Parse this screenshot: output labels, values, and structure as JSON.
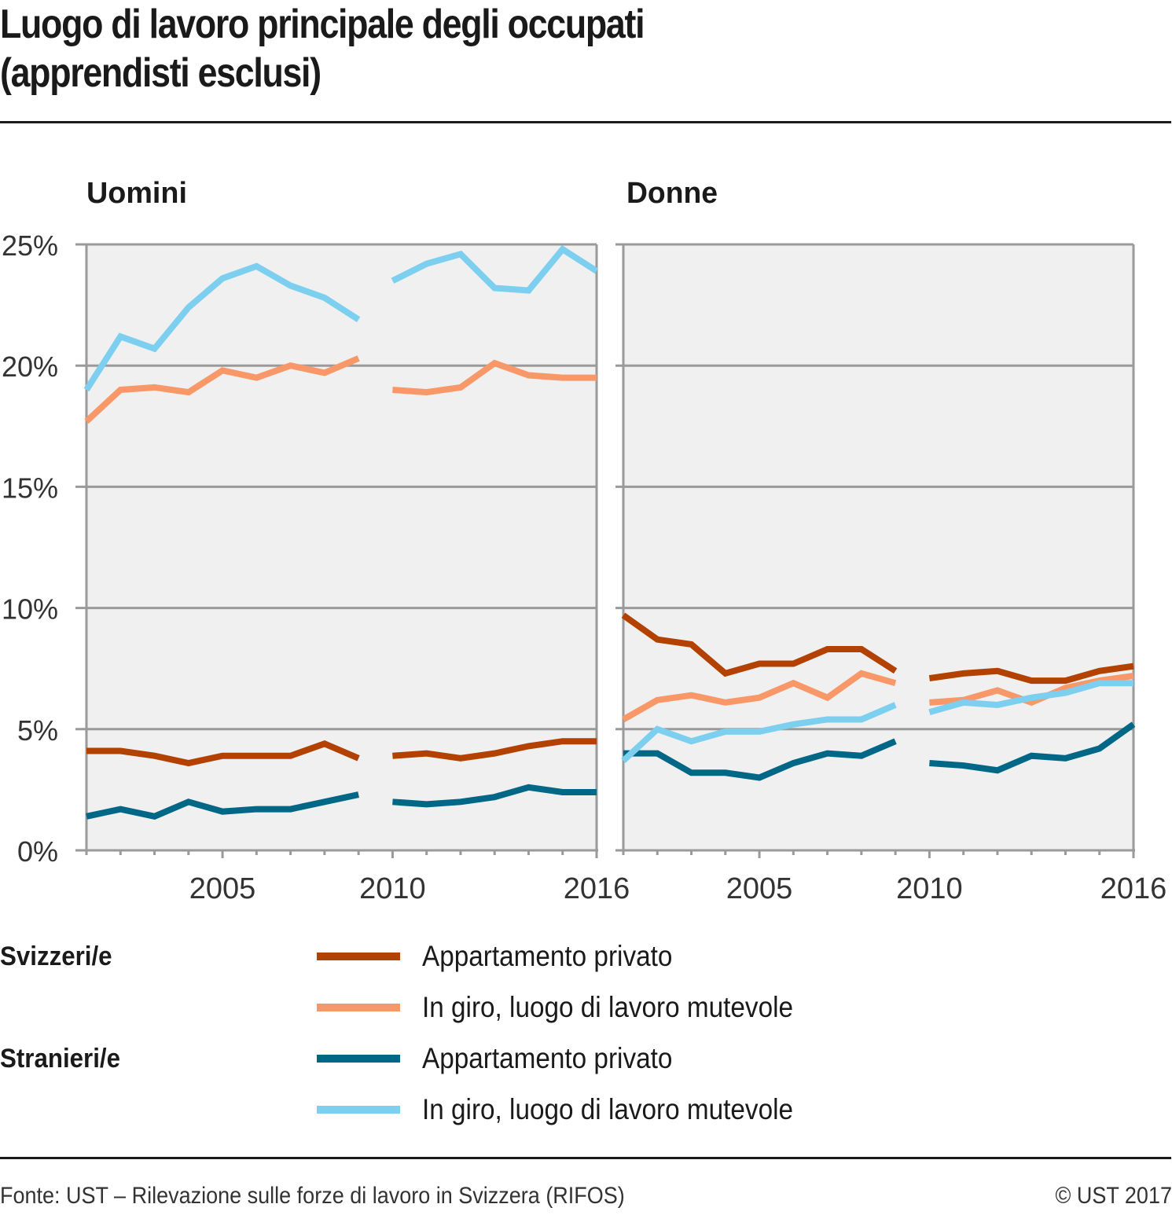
{
  "title_line1": "Luogo di lavoro principale degli occupati",
  "title_line2": "(apprendisti esclusi)",
  "footer": {
    "source": "Fonte: UST – Rilevazione sulle forze di lavoro in Svizzera (RIFOS)",
    "copyright": "© UST 2017"
  },
  "legend": {
    "groups": [
      {
        "label": "Svizzeri/e",
        "items": [
          {
            "label": "Appartamento privato",
            "color": "#b34200"
          },
          {
            "label": "In giro, luogo di lavoro mutevole",
            "color": "#f89868"
          }
        ]
      },
      {
        "label": "Stranieri/e",
        "items": [
          {
            "label": "Appartamento privato",
            "color": "#006787"
          },
          {
            "label": "In giro, luogo di lavoro mutevole",
            "color": "#7dcff0"
          }
        ]
      }
    ]
  },
  "chart_data": [
    {
      "type": "line",
      "title": "Uomini",
      "xlabel": "",
      "ylabel": "",
      "ylim": [
        0,
        25
      ],
      "yticks": [
        0,
        5,
        10,
        15,
        20,
        25
      ],
      "ytick_labels": [
        "0%",
        "5%",
        "10%",
        "15%",
        "20%",
        "25%"
      ],
      "xlim": [
        2001,
        2016
      ],
      "xtick_labels": [
        "2005",
        "2010",
        "2016"
      ],
      "grid": true,
      "x": [
        2001,
        2002,
        2003,
        2004,
        2005,
        2006,
        2007,
        2008,
        2009,
        2010,
        2011,
        2012,
        2013,
        2014,
        2015,
        2016
      ],
      "break_after": 2009,
      "series": [
        {
          "name": "Svizzeri/e – Appartamento privato",
          "color": "#b34200",
          "values": [
            4.1,
            4.1,
            3.9,
            3.6,
            3.9,
            3.9,
            3.9,
            4.4,
            3.8,
            3.9,
            4.0,
            3.8,
            4.0,
            4.3,
            4.5,
            4.5
          ]
        },
        {
          "name": "Svizzeri/e – In giro, luogo di lavoro mutevole",
          "color": "#f89868",
          "values": [
            17.7,
            19.0,
            19.1,
            18.9,
            19.8,
            19.5,
            20.0,
            19.7,
            20.3,
            19.0,
            18.9,
            19.1,
            20.1,
            19.6,
            19.5,
            19.5
          ]
        },
        {
          "name": "Stranieri/e – Appartamento privato",
          "color": "#006787",
          "values": [
            1.4,
            1.7,
            1.4,
            2.0,
            1.6,
            1.7,
            1.7,
            2.0,
            2.3,
            2.0,
            1.9,
            2.0,
            2.2,
            2.6,
            2.4,
            2.4
          ]
        },
        {
          "name": "Stranieri/e – In giro, luogo di lavoro mutevole",
          "color": "#7dcff0",
          "values": [
            19.0,
            21.2,
            20.7,
            22.4,
            23.6,
            24.1,
            23.3,
            22.8,
            21.9,
            23.5,
            24.2,
            24.6,
            23.2,
            23.1,
            24.8,
            23.9
          ]
        }
      ]
    },
    {
      "type": "line",
      "title": "Donne",
      "xlabel": "",
      "ylabel": "",
      "ylim": [
        0,
        25
      ],
      "yticks": [
        0,
        5,
        10,
        15,
        20,
        25
      ],
      "xlim": [
        2001,
        2016
      ],
      "xtick_labels": [
        "2005",
        "2010",
        "2016"
      ],
      "grid": true,
      "x": [
        2001,
        2002,
        2003,
        2004,
        2005,
        2006,
        2007,
        2008,
        2009,
        2010,
        2011,
        2012,
        2013,
        2014,
        2015,
        2016
      ],
      "break_after": 2009,
      "series": [
        {
          "name": "Svizzeri/e – Appartamento privato",
          "color": "#b34200",
          "values": [
            9.7,
            8.7,
            8.5,
            7.3,
            7.7,
            7.7,
            8.3,
            8.3,
            7.4,
            7.1,
            7.3,
            7.4,
            7.0,
            7.0,
            7.4,
            7.6
          ]
        },
        {
          "name": "Svizzeri/e – In giro, luogo di lavoro mutevole",
          "color": "#f89868",
          "values": [
            5.4,
            6.2,
            6.4,
            6.1,
            6.3,
            6.9,
            6.3,
            7.3,
            6.9,
            6.1,
            6.2,
            6.6,
            6.1,
            6.7,
            7.0,
            7.2
          ]
        },
        {
          "name": "Stranieri/e – Appartamento privato",
          "color": "#006787",
          "values": [
            4.0,
            4.0,
            3.2,
            3.2,
            3.0,
            3.6,
            4.0,
            3.9,
            4.5,
            3.6,
            3.5,
            3.3,
            3.9,
            3.8,
            4.2,
            5.2
          ]
        },
        {
          "name": "Stranieri/e – In giro, luogo di lavoro mutevole",
          "color": "#7dcff0",
          "values": [
            3.7,
            5.0,
            4.5,
            4.9,
            4.9,
            5.2,
            5.4,
            5.4,
            6.0,
            5.7,
            6.1,
            6.0,
            6.3,
            6.5,
            6.9,
            6.9
          ]
        }
      ]
    }
  ]
}
